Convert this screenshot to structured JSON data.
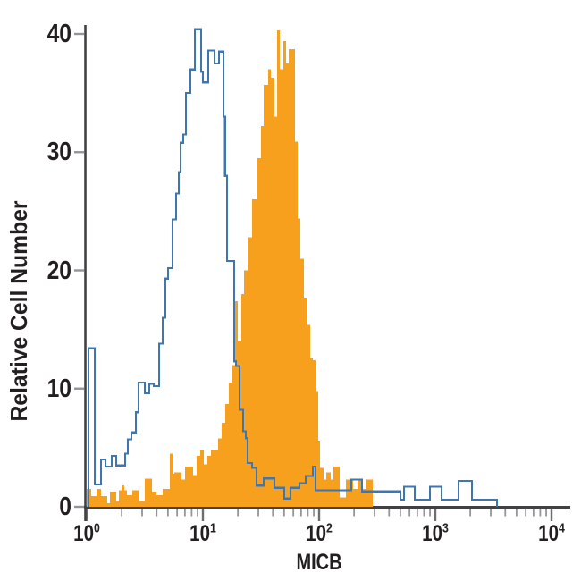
{
  "chart_data": {
    "type": "area",
    "subtype": "step-histogram-overlay",
    "title": "",
    "xlabel": "MICB",
    "ylabel": "Relative Cell Number",
    "x_scale": "log10",
    "x_decades": [
      0,
      4
    ],
    "ylim": [
      0,
      40
    ],
    "grid": "off",
    "legend": "none",
    "y_ticks": [
      0,
      10,
      20,
      30,
      40
    ],
    "x_ticks": [
      {
        "base": "10",
        "exp": "0"
      },
      {
        "base": "10",
        "exp": "1"
      },
      {
        "base": "10",
        "exp": "2"
      },
      {
        "base": "10",
        "exp": "3"
      },
      {
        "base": "10",
        "exp": "4"
      }
    ],
    "colors": {
      "filled_series": "#F6A01E",
      "open_series": "#3E76AF",
      "axis": "#414042",
      "major_tick": "#6D6E71",
      "minor_tick": "#939598",
      "text": "#231F20",
      "background": "#FFFFFF"
    },
    "series": [
      {
        "name": "filled-orange-histogram",
        "style": "filled",
        "color": "#F6A01E",
        "steps": [
          [
            0.0,
            1.5
          ],
          [
            0.038,
            0.9
          ],
          [
            0.085,
            1.5
          ],
          [
            0.123,
            0.9
          ],
          [
            0.177,
            0.3
          ],
          [
            0.2,
            1.3
          ],
          [
            0.254,
            0.5
          ],
          [
            0.277,
            1.4
          ],
          [
            0.3,
            1.8
          ],
          [
            0.323,
            1.4
          ],
          [
            0.346,
            1.0
          ],
          [
            0.392,
            1.4
          ],
          [
            0.446,
            0.5
          ],
          [
            0.5,
            2.4
          ],
          [
            0.562,
            1.3
          ],
          [
            0.6,
            1.0
          ],
          [
            0.654,
            1.5
          ],
          [
            0.715,
            4.5
          ],
          [
            0.738,
            2.8
          ],
          [
            0.754,
            2.9
          ],
          [
            0.815,
            2.3
          ],
          [
            0.846,
            3.4
          ],
          [
            0.885,
            3.4
          ],
          [
            0.915,
            2.7
          ],
          [
            0.946,
            4.3
          ],
          [
            0.977,
            4.8
          ],
          [
            1.008,
            3.6
          ],
          [
            1.038,
            4.3
          ],
          [
            1.069,
            4.8
          ],
          [
            1.131,
            5.8
          ],
          [
            1.162,
            7.1
          ],
          [
            1.192,
            8.7
          ],
          [
            1.223,
            10.5
          ],
          [
            1.254,
            12.0
          ],
          [
            1.277,
            17.4
          ],
          [
            1.3,
            14.0
          ],
          [
            1.331,
            18.0
          ],
          [
            1.354,
            20.0
          ],
          [
            1.385,
            22.8
          ],
          [
            1.423,
            26.0
          ],
          [
            1.469,
            29.5
          ],
          [
            1.5,
            32.2
          ],
          [
            1.523,
            35.7
          ],
          [
            1.562,
            37.0
          ],
          [
            1.585,
            36.3
          ],
          [
            1.615,
            33.0
          ],
          [
            1.638,
            40.3
          ],
          [
            1.662,
            37.0
          ],
          [
            1.692,
            39.4
          ],
          [
            1.715,
            37.5
          ],
          [
            1.738,
            38.7
          ],
          [
            1.792,
            30.9
          ],
          [
            1.815,
            24.4
          ],
          [
            1.838,
            21.0
          ],
          [
            1.869,
            17.7
          ],
          [
            1.892,
            15.4
          ],
          [
            1.923,
            12.6
          ],
          [
            1.946,
            12.4
          ],
          [
            1.969,
            9.8
          ],
          [
            1.992,
            5.6
          ],
          [
            2.008,
            3.3
          ],
          [
            2.038,
            2.3
          ],
          [
            2.062,
            2.9
          ],
          [
            2.1,
            2.3
          ],
          [
            2.123,
            3.4
          ],
          [
            2.177,
            0.8
          ],
          [
            2.231,
            2.3
          ],
          [
            2.292,
            1.5
          ],
          [
            2.331,
            2.4
          ],
          [
            2.369,
            1.5
          ],
          [
            2.408,
            2.3
          ],
          [
            2.462,
            0
          ]
        ]
      },
      {
        "name": "open-blue-histogram",
        "style": "open-outline",
        "color": "#3E76AF",
        "steps": [
          [
            0.015,
            13.4
          ],
          [
            0.07,
            1.9
          ],
          [
            0.123,
            4.0
          ],
          [
            0.162,
            3.4
          ],
          [
            0.215,
            4.3
          ],
          [
            0.254,
            3.5
          ],
          [
            0.331,
            4.5
          ],
          [
            0.354,
            5.7
          ],
          [
            0.385,
            6.3
          ],
          [
            0.423,
            8.0
          ],
          [
            0.446,
            10.5
          ],
          [
            0.5,
            9.6
          ],
          [
            0.538,
            10.4
          ],
          [
            0.577,
            10.2
          ],
          [
            0.623,
            13.8
          ],
          [
            0.654,
            16.0
          ],
          [
            0.677,
            19.3
          ],
          [
            0.7,
            20.2
          ],
          [
            0.738,
            24.3
          ],
          [
            0.769,
            26.5
          ],
          [
            0.792,
            28.3
          ],
          [
            0.808,
            30.8
          ],
          [
            0.831,
            31.5
          ],
          [
            0.854,
            35.0
          ],
          [
            0.892,
            37.0
          ],
          [
            0.931,
            40.4
          ],
          [
            0.985,
            36.8
          ],
          [
            1.0,
            35.9
          ],
          [
            1.046,
            38.6
          ],
          [
            1.1,
            37.5
          ],
          [
            1.138,
            38.5
          ],
          [
            1.177,
            33.0
          ],
          [
            1.19,
            28.0
          ],
          [
            1.208,
            20.8
          ],
          [
            1.269,
            12.3
          ],
          [
            1.285,
            11.9
          ],
          [
            1.315,
            8.2
          ],
          [
            1.346,
            6.4
          ],
          [
            1.369,
            5.8
          ],
          [
            1.385,
            3.7
          ],
          [
            1.423,
            3.3
          ],
          [
            1.462,
            1.8
          ],
          [
            1.523,
            2.4
          ],
          [
            1.615,
            1.6
          ],
          [
            1.7,
            0.7
          ],
          [
            1.754,
            1.6
          ],
          [
            1.831,
            2.0
          ],
          [
            1.885,
            2.6
          ],
          [
            1.946,
            3.4
          ],
          [
            1.969,
            1.4
          ],
          [
            2.277,
            2.3
          ],
          [
            2.369,
            1.3
          ],
          [
            2.7,
            0.6
          ],
          [
            2.731,
            1.7
          ],
          [
            2.823,
            0.6
          ],
          [
            2.954,
            1.7
          ],
          [
            3.054,
            0.6
          ],
          [
            3.2,
            2.2
          ],
          [
            3.315,
            0.6
          ],
          [
            3.53,
            0
          ]
        ]
      }
    ]
  }
}
